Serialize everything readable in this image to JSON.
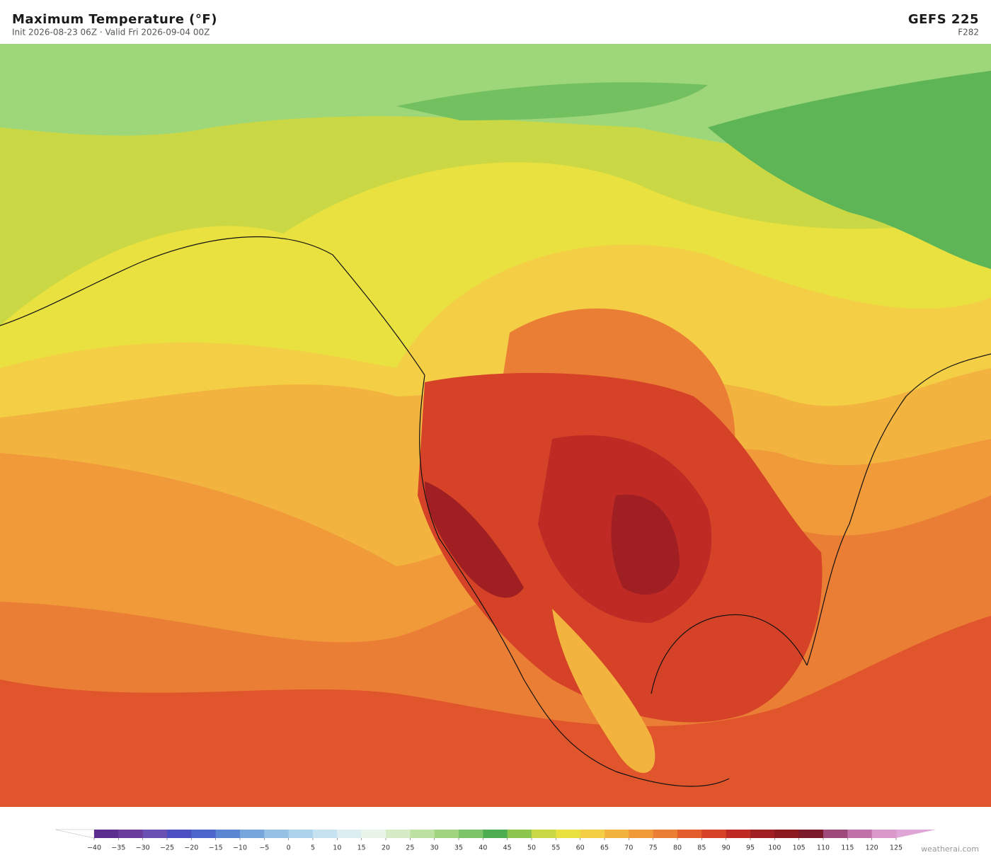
{
  "header": {
    "title": "Maximum Temperature  (°F)",
    "subtitle": "Init 2026-08-23 06Z  ·  Valid Fri 2026-09-04 00Z",
    "model": "GEFS  225",
    "forecast_hour": "F282"
  },
  "colorbar": {
    "ticks": [
      {
        "value": -40,
        "label": "−40"
      },
      {
        "value": -35,
        "label": "−35"
      },
      {
        "value": -30,
        "label": "−30"
      },
      {
        "value": -25,
        "label": "−25"
      },
      {
        "value": -20,
        "label": "−20"
      },
      {
        "value": -15,
        "label": "−15"
      },
      {
        "value": -10,
        "label": "−10"
      },
      {
        "value": -5,
        "label": "−5"
      },
      0,
      5,
      10,
      15,
      20,
      25,
      30,
      35,
      40,
      45,
      50,
      55,
      60,
      65,
      70,
      75,
      80,
      85,
      90,
      95,
      100,
      105,
      110,
      115,
      120,
      125
    ],
    "colors": [
      "#5b2d8e",
      "#6b3d9c",
      "#6a50b2",
      "#4b4fc2",
      "#4c66cc",
      "#5b86d2",
      "#77a6dc",
      "#96c1e5",
      "#add3ec",
      "#c6e2f0",
      "#ddeef3",
      "#eaf5ea",
      "#d5ecc6",
      "#bde1a0",
      "#a1d47f",
      "#7cc468",
      "#4cae50",
      "#8dc64e",
      "#c9d844",
      "#e9e140",
      "#f4cf46",
      "#f3b43f",
      "#f09a3a",
      "#eb7e35",
      "#e25c2c",
      "#d54228",
      "#bf2a24",
      "#a01f22",
      "#8a1a1e",
      "#7b1a2a",
      "#9d4a7a",
      "#c072a8",
      "#d99ac9"
    ],
    "under_color": "#ffffff",
    "over_color": "#dfa6d6"
  },
  "footer": {
    "brand": "weatherai.com"
  }
}
